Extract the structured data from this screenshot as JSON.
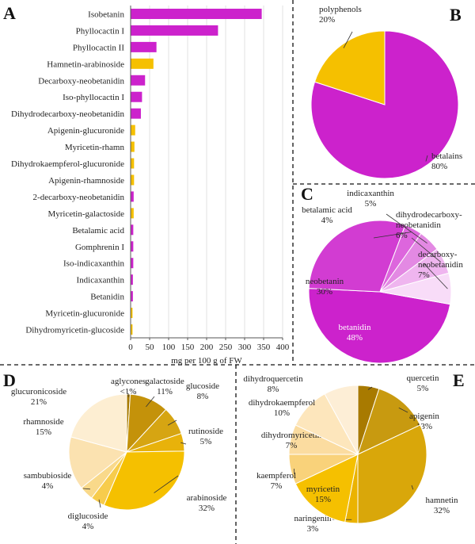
{
  "panels": {
    "a": "A",
    "b": "B",
    "c": "C",
    "d": "D",
    "e": "E"
  },
  "colors": {
    "magenta": "#cc22cc",
    "gold": "#f5c000"
  },
  "chart_data": [
    {
      "id": "A",
      "type": "bar",
      "orientation": "horizontal",
      "xlabel": "mg per 100 g of FW",
      "xlim": [
        0,
        400
      ],
      "xticks": [
        0,
        50,
        100,
        150,
        200,
        250,
        300,
        350,
        400
      ],
      "grid": true,
      "categories": [
        "Isobetanin",
        "Phyllocactin I",
        "Phyllocactin II",
        "Hamnetin-arabinoside",
        "Decarboxy-neobetanidin",
        "Iso-phyllocactin I",
        "Dihydrodecarboxy-neobetanidin",
        "Apigenin-glucuronide",
        "Myricetin-rhamn",
        "Dihydrokaempferol-glucuronide",
        "Apigenin-rhamnoside",
        "2-decarboxy-neobetanidin",
        "Myricetin-galactoside",
        "Betalamic acid",
        "Gomphrenin I",
        "Iso-indicaxanthin",
        "Indicaxanthin",
        "Betanidin",
        "Myricetin-glucuronide",
        "Dihydromyricetin-glucoside"
      ],
      "values": [
        345,
        230,
        68,
        60,
        38,
        30,
        27,
        12,
        10,
        9,
        9,
        8,
        8,
        7,
        7,
        7,
        6,
        6,
        5,
        5
      ],
      "groups": [
        "betalain",
        "betalain",
        "betalain",
        "polyphenol",
        "betalain",
        "betalain",
        "betalain",
        "polyphenol",
        "polyphenol",
        "polyphenol",
        "polyphenol",
        "betalain",
        "polyphenol",
        "betalain",
        "betalain",
        "betalain",
        "betalain",
        "betalain",
        "polyphenol",
        "polyphenol"
      ]
    },
    {
      "id": "B",
      "type": "pie",
      "slices": [
        {
          "name": "betalains",
          "pct": "80%",
          "value": 80,
          "color": "#cc22cc"
        },
        {
          "name": "polyphenols",
          "pct": "20%",
          "value": 20,
          "color": "#f5c000"
        }
      ]
    },
    {
      "id": "C",
      "type": "pie",
      "slices": [
        {
          "name": "betanidin",
          "pct": "48%",
          "value": 48,
          "color": "#cc22cc"
        },
        {
          "name": "neobetanin",
          "pct": "30%",
          "value": 30,
          "color": "#d23cd2"
        },
        {
          "name": "betalamic acid",
          "pct": "4%",
          "value": 4,
          "color": "#dd66dd"
        },
        {
          "name": "indicaxanthin",
          "pct": "5%",
          "value": 5,
          "color": "#e389e3"
        },
        {
          "name": "dihydrodecarboxy-neobetanidin",
          "pct": "6%",
          "value": 6,
          "color": "#efb5ef"
        },
        {
          "name": "decarboxy-neobetanidin",
          "pct": "7%",
          "value": 7,
          "color": "#f8dcf8"
        }
      ]
    },
    {
      "id": "D",
      "type": "pie",
      "slices": [
        {
          "name": "aglycones",
          "pct": "<1%",
          "value": 1,
          "color": "#a87a00"
        },
        {
          "name": "galactoside",
          "pct": "11%",
          "value": 11,
          "color": "#c4920a"
        },
        {
          "name": "glucoside",
          "pct": "8%",
          "value": 8,
          "color": "#d6a512"
        },
        {
          "name": "rutinoside",
          "pct": "5%",
          "value": 5,
          "color": "#e8b20a"
        },
        {
          "name": "arabinoside",
          "pct": "32%",
          "value": 32,
          "color": "#f5c000"
        },
        {
          "name": "diglucoside",
          "pct": "4%",
          "value": 4,
          "color": "#f7cc4c"
        },
        {
          "name": "sambubioside",
          "pct": "4%",
          "value": 4,
          "color": "#f9d98a"
        },
        {
          "name": "rhamnoside",
          "pct": "15%",
          "value": 15,
          "color": "#fbe2b0"
        },
        {
          "name": "glucuronicoside",
          "pct": "21%",
          "value": 21,
          "color": "#fdeed2"
        }
      ]
    },
    {
      "id": "E",
      "type": "pie",
      "slices": [
        {
          "name": "quercetin",
          "pct": "5%",
          "value": 5,
          "color": "#a87a00"
        },
        {
          "name": "apigenin",
          "pct": "13%",
          "value": 13,
          "color": "#c89a10"
        },
        {
          "name": "hamnetin",
          "pct": "32%",
          "value": 32,
          "color": "#d9a70a"
        },
        {
          "name": "naringenin",
          "pct": "3%",
          "value": 3,
          "color": "#ebb300"
        },
        {
          "name": "myricetin",
          "pct": "15%",
          "value": 15,
          "color": "#f5c000"
        },
        {
          "name": "kaempferol",
          "pct": "7%",
          "value": 7,
          "color": "#f9d27a"
        },
        {
          "name": "dihydromyricetin",
          "pct": "7%",
          "value": 7,
          "color": "#fbdca0"
        },
        {
          "name": "dihydrokaempferol",
          "pct": "10%",
          "value": 10,
          "color": "#fde6bc"
        },
        {
          "name": "dihydroquercetin",
          "pct": "8%",
          "value": 8,
          "color": "#fdeed6"
        }
      ]
    }
  ]
}
